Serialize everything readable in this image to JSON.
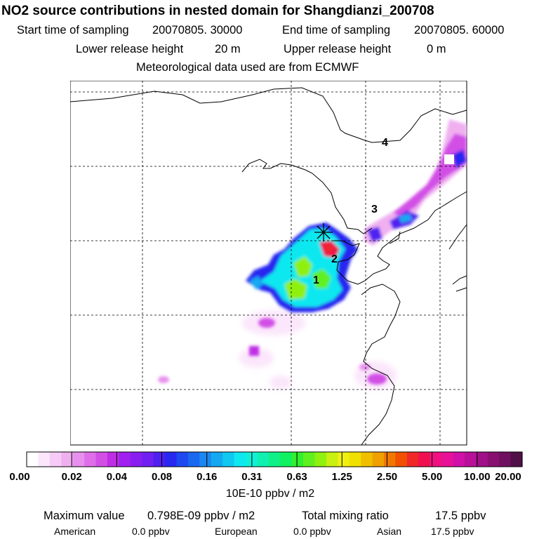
{
  "title": "NO2 source contributions in nested domain for Shangdianzi_200708",
  "sampling": {
    "start_label": "Start time of sampling",
    "start_value": "20070805. 30000",
    "end_label": "End time of sampling",
    "end_value": "20070805. 60000"
  },
  "release": {
    "lower_label": "Lower release height",
    "lower_value": "20 m",
    "upper_label": "Upper release height",
    "upper_value": "0 m"
  },
  "meteo_note": "Meteorological data used are from ECMWF",
  "chart_data": {
    "type": "heatmap",
    "title": "NO2 source contributions in nested domain for Shangdianzi_200708",
    "grid": true,
    "region_labels": [
      "1",
      "2",
      "3",
      "4"
    ],
    "receptor_marker": "station-asterisk",
    "colorbar": {
      "tick_labels": [
        "0.00",
        "0.02",
        "0.04",
        "0.08",
        "0.16",
        "0.31",
        "0.63",
        "1.25",
        "2.50",
        "5.00",
        "10.00",
        "20.00"
      ],
      "unit_label": "10E-10 ppbv / m2",
      "colors": [
        "#ffffff",
        "#fbe6fb",
        "#f6ccf6",
        "#f0b0f0",
        "#e890ee",
        "#df6fe9",
        "#d24fe6",
        "#bf2ee4",
        "#a020f0",
        "#8a1ef0",
        "#7020f0",
        "#5020f0",
        "#2828f0",
        "#1e48f0",
        "#1a68f0",
        "#1a88f0",
        "#14a8f0",
        "#10c8f0",
        "#10e8f0",
        "#10f0d8",
        "#10f0b0",
        "#10f088",
        "#10f060",
        "#30f030",
        "#60f020",
        "#90f010",
        "#c8f010",
        "#f0f010",
        "#f0e000",
        "#f0c000",
        "#f0a000",
        "#f07800",
        "#f05000",
        "#f02828",
        "#f01050",
        "#f01080",
        "#e81098",
        "#d010a8",
        "#b81098",
        "#a01088",
        "#881070",
        "#701060",
        "#501048"
      ]
    },
    "summary": {
      "max_label": "Maximum value",
      "max_value": "0.798E-09 ppbv / m2",
      "total_label": "Total mixing ratio",
      "total_value": "17.5 ppbv",
      "contributions": [
        {
          "name": "American",
          "value": "0.0 ppbv"
        },
        {
          "name": "European",
          "value": "0.0 ppbv"
        },
        {
          "name": "Asian",
          "value": "17.5 ppbv"
        }
      ]
    }
  }
}
